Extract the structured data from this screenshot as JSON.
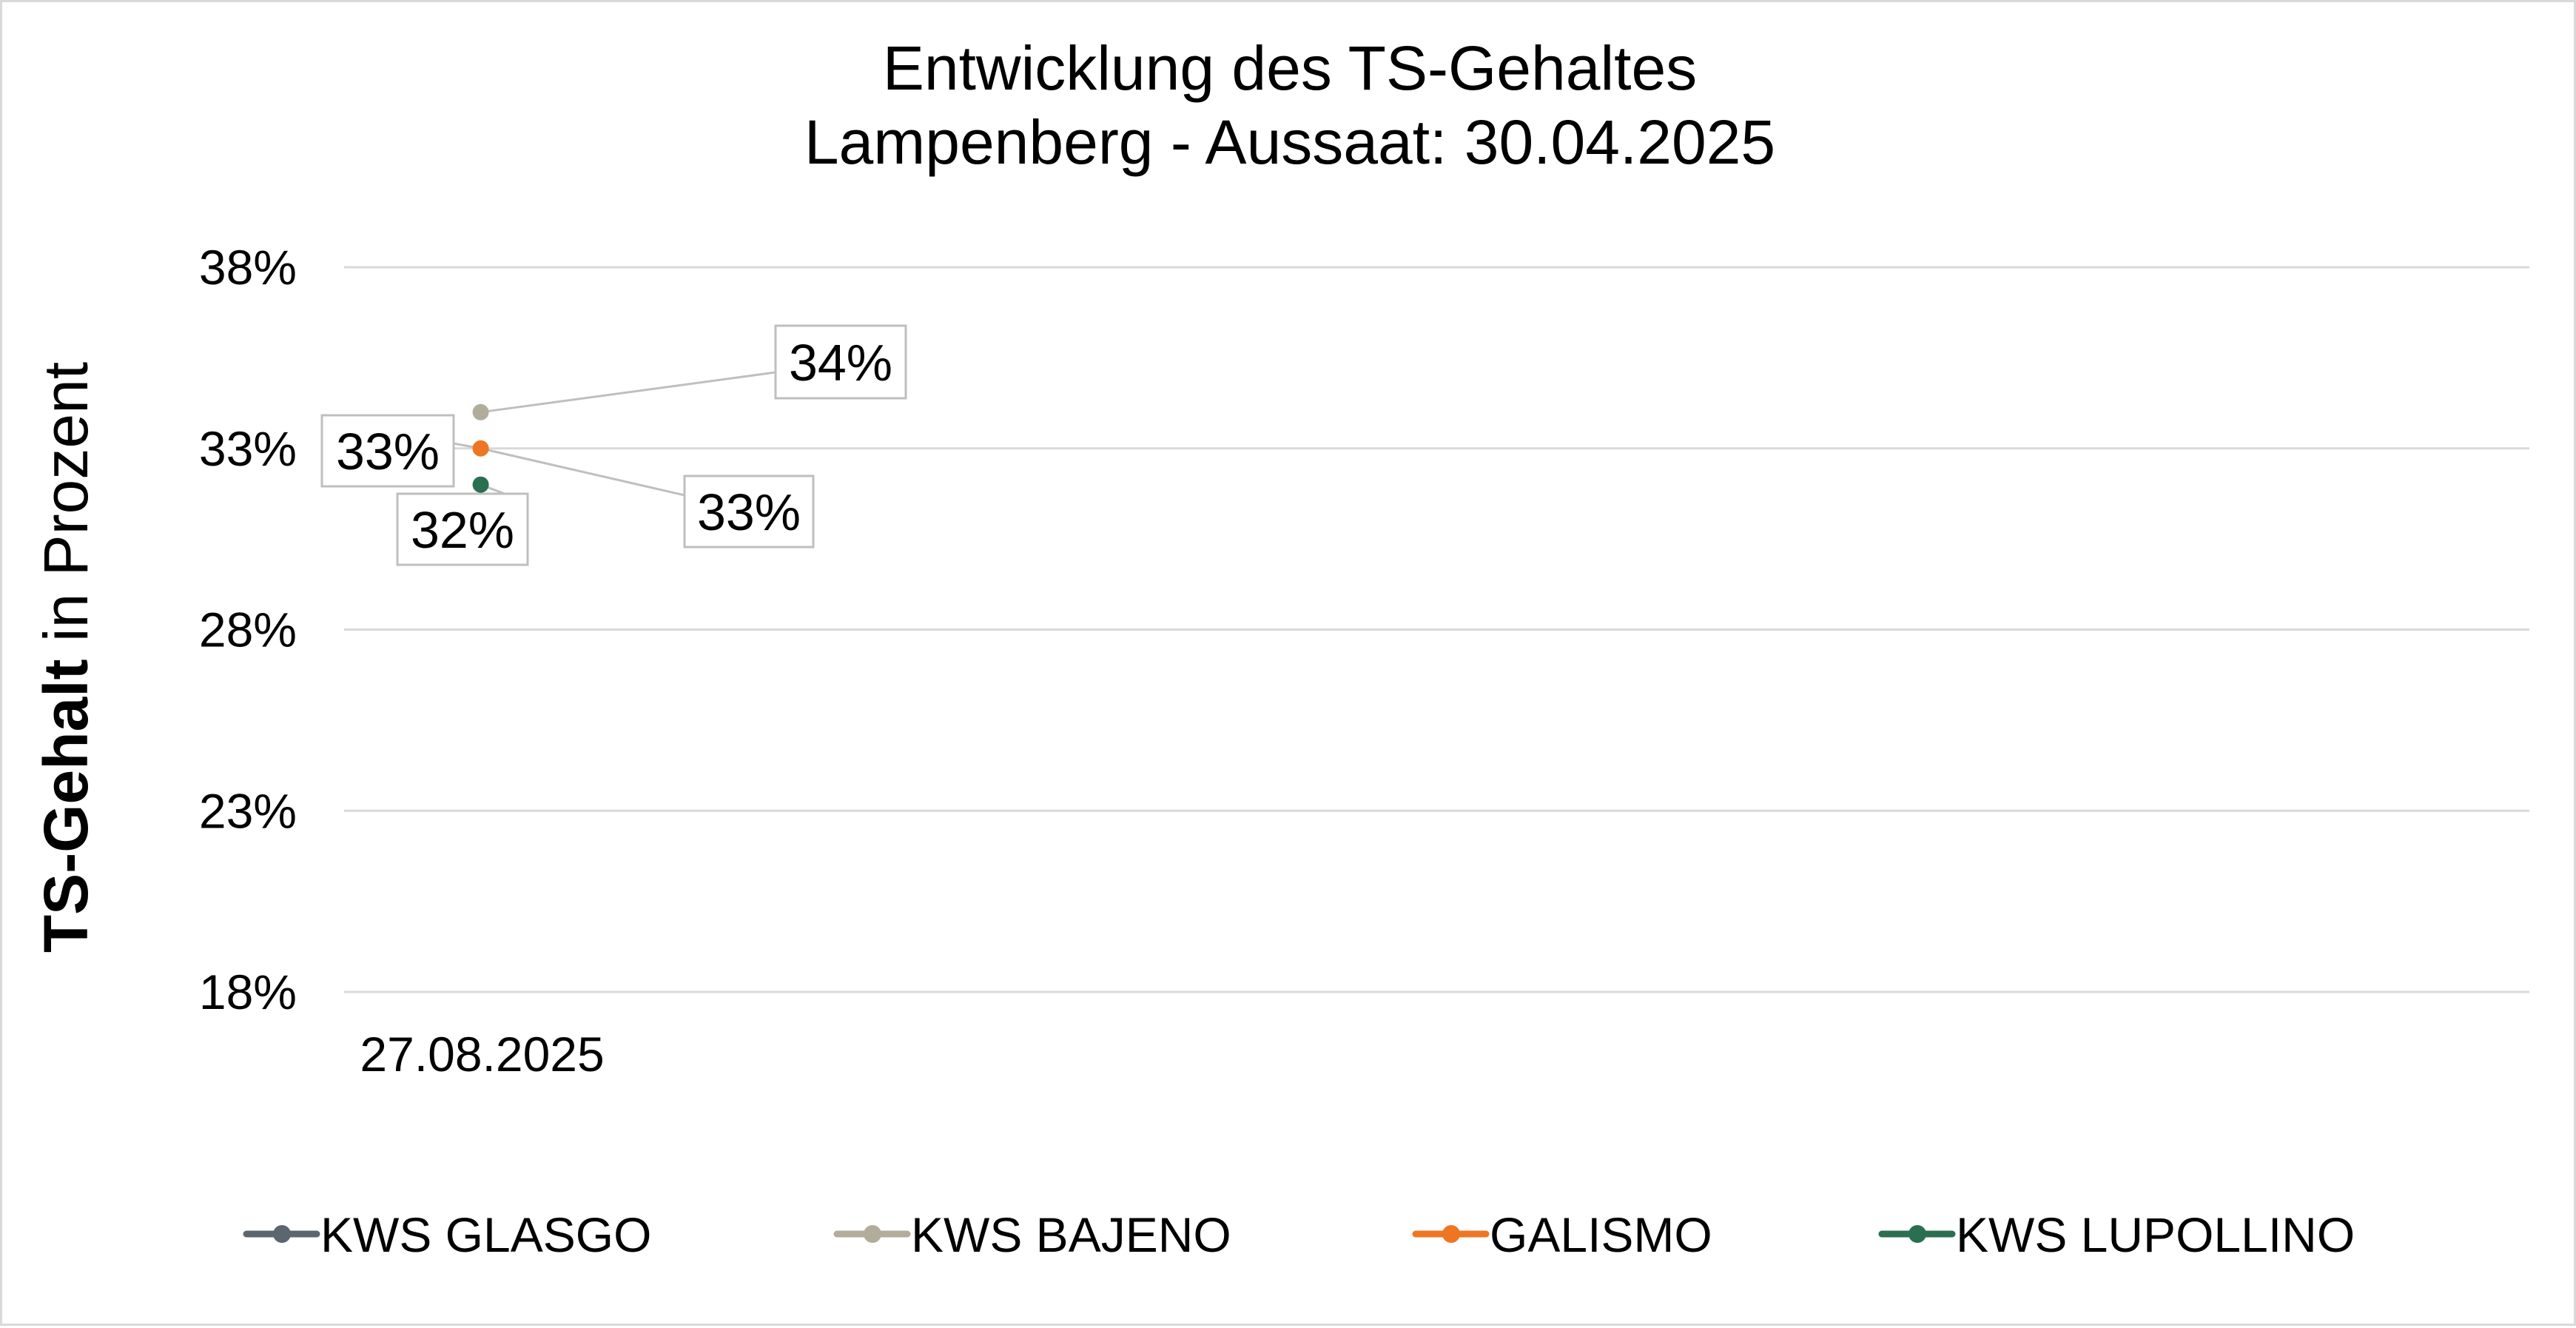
{
  "chart_data": {
    "type": "line",
    "title": "Entwicklung des TS-Gehaltes",
    "subtitle": "Lampenberg - Aussaat: 30.04.2025",
    "ylabel_bold": "TS-Gehalt",
    "ylabel_rest": " in Prozent",
    "xlabel": "",
    "categories": [
      "27.08.2025"
    ],
    "ylim": [
      0.18,
      0.38
    ],
    "yticks": [
      0.38,
      0.33,
      0.28,
      0.23,
      0.18
    ],
    "ytick_labels": [
      "38%",
      "33%",
      "28%",
      "23%",
      "18%"
    ],
    "grid": true,
    "legend_position": "bottom",
    "series": [
      {
        "name": "KWS GLASGO",
        "color": "#5b6670",
        "values": [
          null
        ],
        "labels": [
          null
        ]
      },
      {
        "name": "KWS BAJENO",
        "color": "#b2ad9a",
        "values": [
          0.34
        ],
        "labels": [
          "34%"
        ]
      },
      {
        "name": "GALISMO",
        "color": "#ee7622",
        "values": [
          0.33
        ],
        "labels": [
          "33%"
        ]
      },
      {
        "name": "KWS LUPOLLINO",
        "color": "#2a6f4f",
        "values": [
          0.32
        ],
        "labels": [
          "32%"
        ]
      }
    ],
    "extra_labels": [
      "33%"
    ]
  }
}
